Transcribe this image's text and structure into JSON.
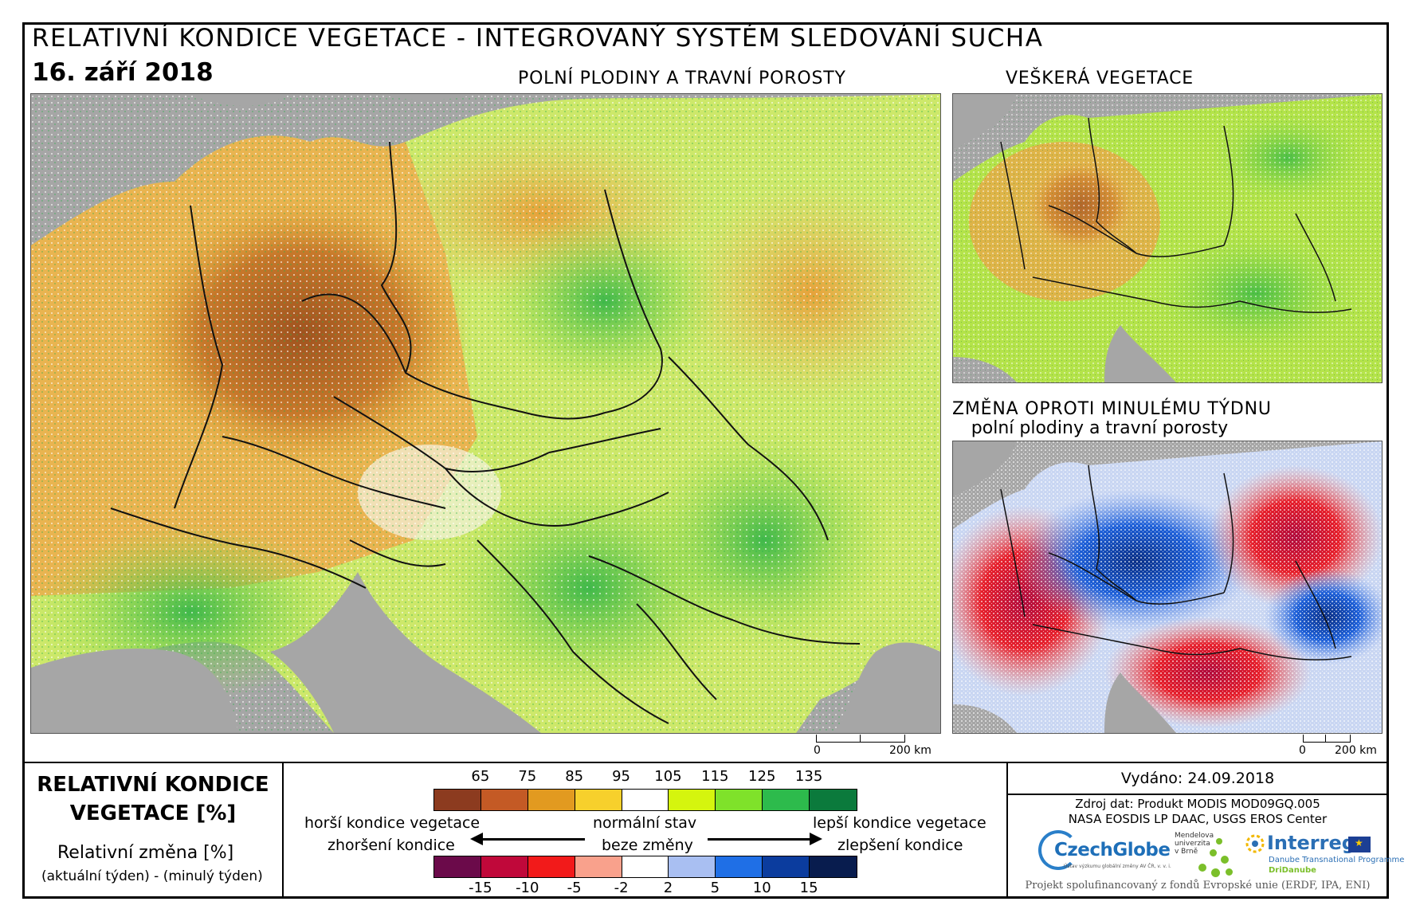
{
  "header": {
    "title": "RELATIVNÍ KONDICE VEGETACE - INTEGROVANÝ SYSTÉM SLEDOVÁNÍ SUCHA",
    "date": "16. září 2018"
  },
  "maps": {
    "main_caption": "POLNÍ PLODINY A TRAVNÍ POROSTY",
    "all_caption": "VEŠKERÁ VEGETACE",
    "change_caption_1": "ZMĚNA OPROTI MINULÉMU TÝDNU",
    "change_caption_2": "polní plodiny a travní porosty",
    "scale_zero": "0",
    "scale_main": "200 km",
    "scale_small": "200 km"
  },
  "legend": {
    "title_1": "RELATIVNÍ KONDICE",
    "title_2": "VEGETACE [%]",
    "change_title": "Relativní změna [%]",
    "change_sub": "(aktuální týden) - (minulý týden)",
    "condition_ticks": [
      "65",
      "75",
      "85",
      "95",
      "105",
      "115",
      "125",
      "135"
    ],
    "condition_colors": [
      "#8c3b1f",
      "#c45a25",
      "#e29a20",
      "#f7d02c",
      "#ffffff",
      "#d5f50e",
      "#7fe22a",
      "#2dbb4c",
      "#0b7a3c"
    ],
    "change_ticks": [
      "-15",
      "-10",
      "-5",
      "-2",
      "2",
      "5",
      "10",
      "15"
    ],
    "change_colors": [
      "#6b0a4a",
      "#c0083a",
      "#f21a1a",
      "#f9a18c",
      "#ffffff",
      "#a9bff2",
      "#1f6fe6",
      "#0b3c9e",
      "#081c4e"
    ],
    "worse_condition": "horší kondice vegetace",
    "normal_state": "normální stav",
    "better_condition": "lepší kondice vegetace",
    "worsening": "zhoršení kondice",
    "no_change": "beze změny",
    "improvement": "zlepšení kondice"
  },
  "info": {
    "issued": "Vydáno: 24.09.2018",
    "source_1": "Zdroj dat: Produkt MODIS MOD09GQ.005",
    "source_2": "NASA EOSDIS LP DAAC, USGS EROS Center",
    "footer": "Projekt spolufinancovaný z fondů Evropské unie (ERDF, IPA, ENI)"
  },
  "logos": {
    "czechglobe": "CzechGlobe",
    "czechglobe_sub": "Ústav výzkumu globální změny AV ČR, v. v. i.",
    "mendel_1": "Mendelova",
    "mendel_2": "univerzita",
    "mendel_3": "v Brně",
    "interreg": "Interreg",
    "interreg_sub": "Danube Transnational Programme",
    "dridanube": "DriDanube"
  }
}
